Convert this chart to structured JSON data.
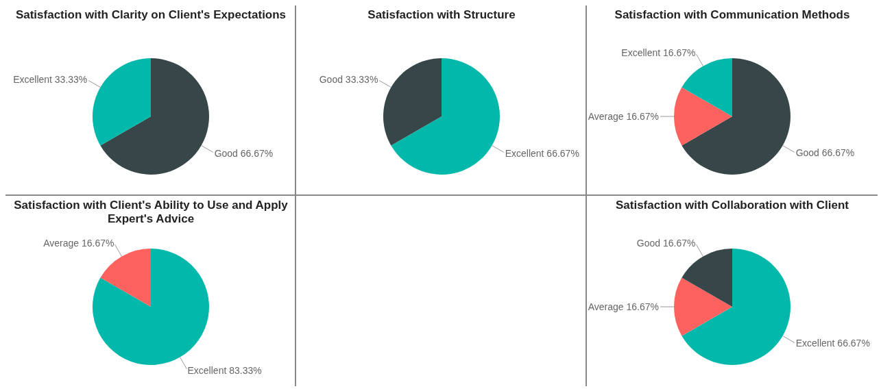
{
  "chart_data": [
    {
      "type": "pie",
      "title": "Satisfaction with Clarity on Client's Expectations",
      "categories": [
        "Good",
        "Excellent"
      ],
      "values": [
        66.67,
        33.33
      ],
      "colors": [
        "#374649",
        "#01b8aa"
      ],
      "value_labels": [
        "66.67%",
        "33.33%"
      ]
    },
    {
      "type": "pie",
      "title": "Satisfaction with Structure",
      "categories": [
        "Excellent",
        "Good"
      ],
      "values": [
        66.67,
        33.33
      ],
      "colors": [
        "#01b8aa",
        "#374649"
      ],
      "value_labels": [
        "66.67%",
        "33.33%"
      ]
    },
    {
      "type": "pie",
      "title": "Satisfaction with Communication Methods",
      "categories": [
        "Good",
        "Average",
        "Excellent"
      ],
      "values": [
        66.67,
        16.67,
        16.67
      ],
      "colors": [
        "#374649",
        "#fd625e",
        "#01b8aa"
      ],
      "value_labels": [
        "66.67%",
        "16.67%",
        "16.67%"
      ]
    },
    {
      "type": "pie",
      "title": "Satisfaction with Client's Ability to Use and Apply Expert's Advice",
      "categories": [
        "Excellent",
        "Average"
      ],
      "values": [
        83.33,
        16.67
      ],
      "colors": [
        "#01b8aa",
        "#fd625e"
      ],
      "value_labels": [
        "83.33%",
        "16.67%"
      ]
    },
    {
      "type": "pie",
      "title": "Satisfaction with Collaboration with Client",
      "categories": [
        "Excellent",
        "Average",
        "Good"
      ],
      "values": [
        66.67,
        16.67,
        16.67
      ],
      "colors": [
        "#01b8aa",
        "#fd625e",
        "#374649"
      ],
      "value_labels": [
        "66.67%",
        "16.67%",
        "16.67%"
      ]
    }
  ]
}
